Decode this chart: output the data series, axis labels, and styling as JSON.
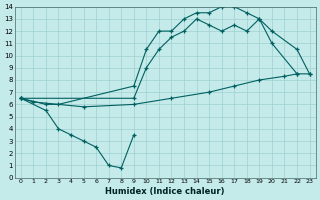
{
  "xlabel": "Humidex (Indice chaleur)",
  "bg_color": "#c5eaea",
  "grid_color": "#9fcfcf",
  "line_color": "#006060",
  "xlim": [
    -0.5,
    23.5
  ],
  "ylim": [
    0,
    14
  ],
  "xticks": [
    0,
    1,
    2,
    3,
    4,
    5,
    6,
    7,
    8,
    9,
    10,
    11,
    12,
    13,
    14,
    15,
    16,
    17,
    18,
    19,
    20,
    21,
    22,
    23
  ],
  "yticks": [
    0,
    1,
    2,
    3,
    4,
    5,
    6,
    7,
    8,
    9,
    10,
    11,
    12,
    13,
    14
  ],
  "line_top_x": [
    0,
    2,
    3,
    9,
    10,
    11,
    12,
    13,
    14,
    15,
    16,
    17,
    18,
    19,
    20,
    22
  ],
  "line_top_y": [
    6.5,
    6.0,
    6.0,
    7.5,
    10.5,
    12.0,
    12.0,
    13.0,
    13.5,
    13.5,
    14.0,
    14.0,
    13.5,
    13.0,
    11.0,
    8.5
  ],
  "line_mid_x": [
    0,
    9,
    10,
    11,
    12,
    13,
    14,
    15,
    16,
    17,
    18,
    19,
    20,
    22,
    23
  ],
  "line_mid_y": [
    6.5,
    6.5,
    9.0,
    10.5,
    11.5,
    12.0,
    13.0,
    12.5,
    12.0,
    12.5,
    12.0,
    13.0,
    12.0,
    10.5,
    8.5
  ],
  "line_flat_x": [
    0,
    1,
    5,
    9,
    12,
    15,
    17,
    19,
    21,
    22,
    23
  ],
  "line_flat_y": [
    6.5,
    6.2,
    5.8,
    6.0,
    6.5,
    7.0,
    7.5,
    8.0,
    8.3,
    8.5,
    8.5
  ],
  "line_dip_x": [
    0,
    2,
    3,
    4,
    5,
    6,
    7,
    8,
    9
  ],
  "line_dip_y": [
    6.5,
    5.5,
    4.0,
    3.5,
    3.0,
    2.5,
    1.0,
    0.8,
    3.5
  ]
}
